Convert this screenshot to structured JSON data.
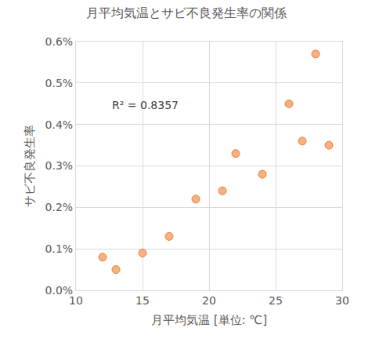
{
  "chart_data": {
    "type": "scatter",
    "title": "月平均気温とサビ不良発生率の関係",
    "x_label": "月平均気温 [単位: ℃]",
    "y_label": "サビ不良発生率",
    "annotations": [
      "R² = 0.8357"
    ],
    "x": [
      12,
      13,
      15,
      17,
      19,
      21,
      22,
      24,
      26,
      27,
      28,
      29
    ],
    "values": [
      0.08,
      0.05,
      0.09,
      0.13,
      0.22,
      0.24,
      0.33,
      0.28,
      0.45,
      0.36,
      0.57,
      0.35
    ],
    "color": "#f4b183",
    "marker": "circle",
    "xlim": [
      10,
      30
    ],
    "xticks": [
      10,
      15,
      20,
      25,
      30
    ],
    "ylim": [
      0,
      0.6
    ],
    "yticks": [
      {
        "value": 0,
        "label": "0.0%"
      },
      {
        "value": 0.1,
        "label": "0.1%"
      },
      {
        "value": 0.2,
        "label": "0.2%"
      },
      {
        "value": 0.3,
        "label": "0.3%"
      },
      {
        "value": 0.4,
        "label": "0.4%"
      },
      {
        "value": 0.5,
        "label": "0.5%"
      },
      {
        "value": 0.6,
        "label": "0.6%"
      }
    ],
    "grid": true
  }
}
